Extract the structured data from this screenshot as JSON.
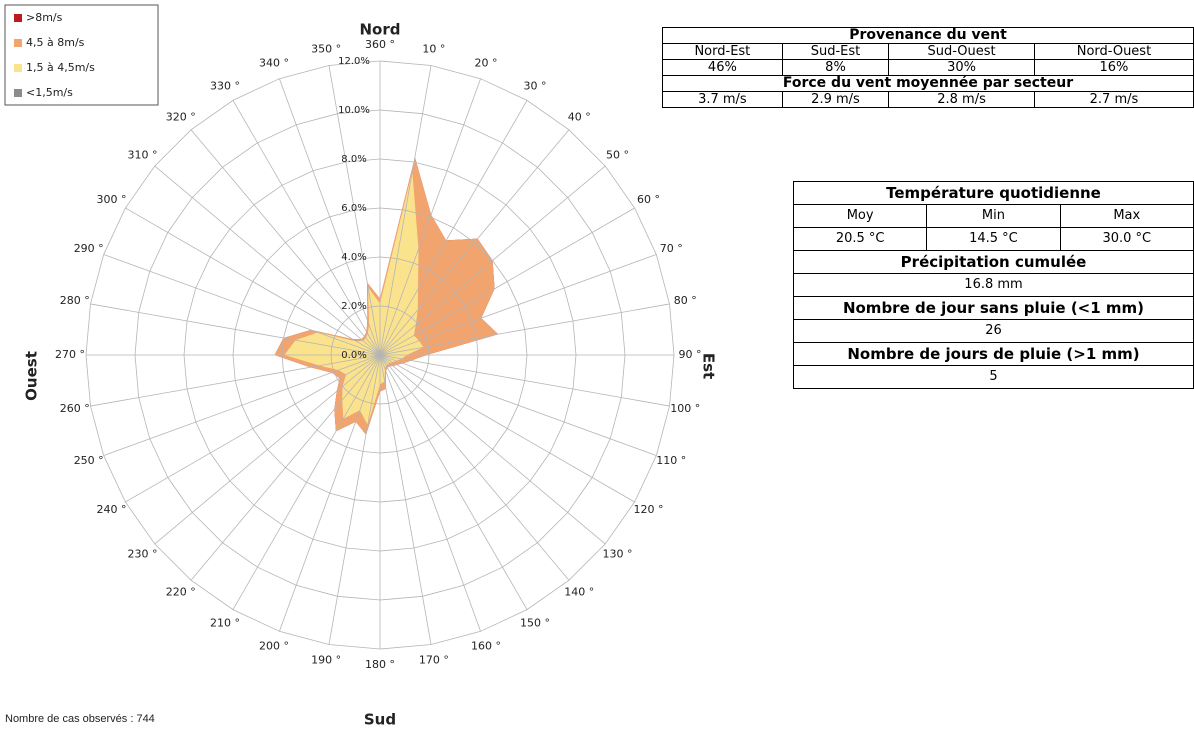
{
  "chart_data": {
    "type": "radar-stacked",
    "footnote": "Nombre de cas observés : 744",
    "directions": {
      "north": "Nord",
      "east": "Est",
      "south": "Sud",
      "west": "Ouest"
    },
    "categories": [
      "360 °",
      "10 °",
      "20 °",
      "30 °",
      "40 °",
      "50 °",
      "60 °",
      "70 °",
      "80 °",
      "90 °",
      "100 °",
      "110 °",
      "120 °",
      "130 °",
      "140 °",
      "150 °",
      "160 °",
      "170 °",
      "180 °",
      "190 °",
      "200 °",
      "210 °",
      "220 °",
      "230 °",
      "240 °",
      "250 °",
      "260 °",
      "270 °",
      "280 °",
      "290 °",
      "300 °",
      "310 °",
      "320 °",
      "330 °",
      "340 °",
      "350 °"
    ],
    "rlim": [
      0,
      12
    ],
    "rticks": [
      {
        "value": 0,
        "label": "0.0%"
      },
      {
        "value": 2,
        "label": "2.0%"
      },
      {
        "value": 4,
        "label": "4.0%"
      },
      {
        "value": 6,
        "label": "6.0%"
      },
      {
        "value": 8,
        "label": "8.0%"
      },
      {
        "value": 10,
        "label": "10.0%"
      },
      {
        "value": 12,
        "label": "12.0%"
      }
    ],
    "grid": true,
    "legend": "top-left",
    "series": [
      {
        "name": "<1,5m/s",
        "color": "#8c8c8c",
        "values": [
          0.1,
          0.1,
          0.1,
          0.1,
          0.1,
          0.1,
          0.1,
          0.1,
          0.1,
          0.1,
          0.1,
          0.1,
          0.1,
          0.1,
          0.1,
          0.1,
          0.1,
          0.1,
          0.1,
          0.1,
          0.1,
          0.1,
          0.1,
          0.1,
          0.1,
          0.1,
          0.1,
          0.1,
          0.1,
          0.1,
          0.1,
          0.1,
          0.1,
          0.1,
          0.1,
          0.1
        ]
      },
      {
        "name": "1,5 à 4,5m/s",
        "color": "#fbe38e",
        "values": [
          2.0,
          7.5,
          4.5,
          3.0,
          2.3,
          1.8,
          1.5,
          1.6,
          1.7,
          1.0,
          0.8,
          0.6,
          0.5,
          0.4,
          0.4,
          0.4,
          0.5,
          1.0,
          1.1,
          2.8,
          2.3,
          2.9,
          2.3,
          1.9,
          1.5,
          1.7,
          2.4,
          3.8,
          3.4,
          2.6,
          1.0,
          0.8,
          0.8,
          0.9,
          1.2,
          2.7
        ]
      },
      {
        "name": "4,5 à 8m/s",
        "color": "#f2a46f",
        "values": [
          0.2,
          0.6,
          1.5,
          2.3,
          3.8,
          4.1,
          3.8,
          2.7,
          3.1,
          0.8,
          0.4,
          0.3,
          0.2,
          0.2,
          0.1,
          0.1,
          0.1,
          0.3,
          0.3,
          0.4,
          0.5,
          0.6,
          0.5,
          0.3,
          0.3,
          0.3,
          0.4,
          0.4,
          0.5,
          0.3,
          0.2,
          0.1,
          0.1,
          0.1,
          0.2,
          0.2
        ]
      },
      {
        "name": ">8m/s",
        "color": "#c0181f",
        "values": [
          0,
          0,
          0,
          0,
          0,
          0,
          0,
          0,
          0,
          0,
          0,
          0,
          0,
          0,
          0,
          0,
          0,
          0,
          0,
          0,
          0,
          0,
          0,
          0,
          0,
          0,
          0,
          0,
          0,
          0,
          0,
          0,
          0,
          0,
          0,
          0
        ]
      }
    ]
  },
  "wind_table": {
    "title": "Provenance du vent",
    "columns": [
      "Nord-Est",
      "Sud-Est",
      "Sud-Ouest",
      "Nord-Ouest"
    ],
    "shares": [
      "46%",
      "8%",
      "30%",
      "16%"
    ],
    "subtitle": "Force du vent moyennée par secteur",
    "speeds": [
      "3.7 m/s",
      "2.9 m/s",
      "2.8 m/s",
      "2.7 m/s"
    ]
  },
  "weather_table": {
    "title": "Température quotidienne",
    "columns": [
      "Moy",
      "Min",
      "Max"
    ],
    "temps": [
      "20.5 °C",
      "14.5 °C",
      "30.0 °C"
    ],
    "rows": [
      {
        "label": "Précipitation cumulée",
        "value": "16.8 mm"
      },
      {
        "label": "Nombre de jour sans pluie (<1 mm)",
        "value": "26"
      },
      {
        "label": "Nombre de jours de pluie (>1 mm)",
        "value": "5"
      }
    ]
  }
}
